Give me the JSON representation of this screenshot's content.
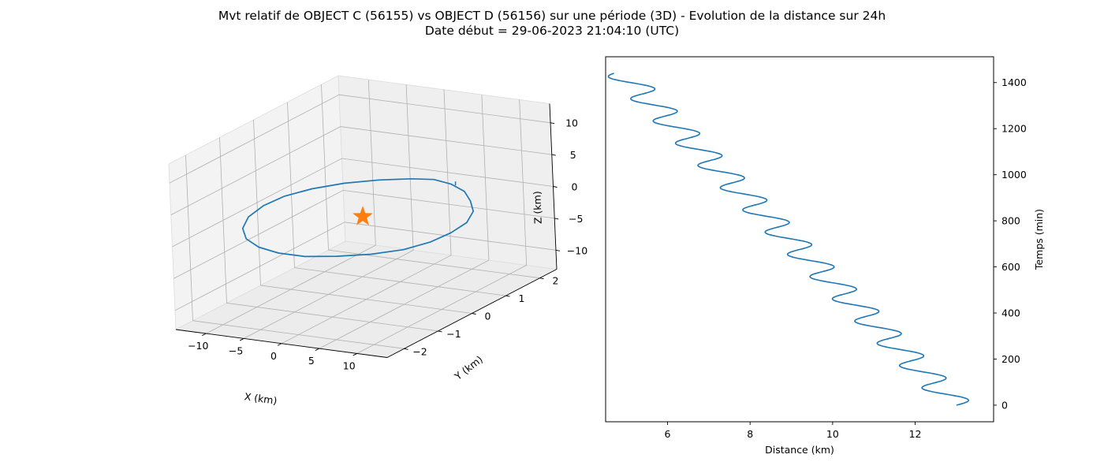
{
  "figure": {
    "title_line1": "Mvt relatif de OBJECT C (56155) vs OBJECT D (56156) sur une période (3D) - Evolution de la distance sur 24h",
    "title_line2": "Date début = 29-06-2023 21:04:10 (UTC)"
  },
  "colors": {
    "series": "#1f77b4",
    "marker": "#ff7f0e",
    "axis": "#000000",
    "pane": "#f2f2f2",
    "grid": "#b0b0b0"
  },
  "chart_data": [
    {
      "type": "line",
      "projection": "3d",
      "xlabel": "X (km)",
      "ylabel": "Y (km)",
      "zlabel": "Z (km)",
      "xlim": [
        -14,
        14
      ],
      "ylim": [
        -2.5,
        2.5
      ],
      "zlim": [
        -13,
        13
      ],
      "xticks": [
        -10,
        -5,
        0,
        5,
        10
      ],
      "yticks": [
        -2,
        -1,
        0,
        1,
        2
      ],
      "zticks": [
        -10,
        -5,
        0,
        5,
        10
      ],
      "xtick_labels": [
        "−10",
        "−5",
        "0",
        "5",
        "10"
      ],
      "ytick_labels": [
        "−2",
        "−1",
        "0",
        "1",
        "2"
      ],
      "ztick_labels": [
        "−10",
        "−5",
        "0",
        "5",
        "10"
      ],
      "grid": true,
      "series": [
        {
          "marker": "none",
          "points": [
            [
              0,
              2.1,
              0
            ],
            [
              2.7,
              2.0,
              0
            ],
            [
              5.6,
              1.75,
              0
            ],
            [
              8.2,
              1.35,
              0
            ],
            [
              10.6,
              0.9,
              0
            ],
            [
              12.2,
              0.35,
              0
            ],
            [
              12.6,
              -0.2,
              0
            ],
            [
              12.3,
              -0.75,
              0
            ],
            [
              11.0,
              -1.25,
              0
            ],
            [
              8.5,
              -1.65,
              0
            ],
            [
              5.3,
              -1.95,
              0
            ],
            [
              2.0,
              -2.15,
              0
            ],
            [
              -1.5,
              -2.15,
              0
            ],
            [
              -4.8,
              -2.0,
              0
            ],
            [
              -7.8,
              -1.7,
              0
            ],
            [
              -10.3,
              -1.25,
              0
            ],
            [
              -12.0,
              -0.7,
              0
            ],
            [
              -12.7,
              -0.1,
              0
            ],
            [
              -12.4,
              0.45,
              0
            ],
            [
              -11.0,
              0.95,
              0
            ],
            [
              -8.7,
              1.4,
              0
            ],
            [
              -5.7,
              1.75,
              0
            ],
            [
              -2.5,
              2.0,
              0
            ],
            [
              0,
              2.1,
              0
            ]
          ]
        },
        {
          "marker": "star",
          "points": [
            [
              0,
              0,
              0
            ]
          ]
        }
      ]
    },
    {
      "type": "line",
      "xlabel": "Distance (km)",
      "ylabel": "Temps (min)",
      "xlim": [
        4.5,
        13.9
      ],
      "ylim": [
        -72,
        1512
      ],
      "xticks": [
        6,
        8,
        10,
        12
      ],
      "yticks": [
        0,
        200,
        400,
        600,
        800,
        1000,
        1200,
        1400
      ],
      "yaxis_side": "right",
      "grid": false,
      "series": [
        {
          "x_start": 13.0,
          "x_end": 4.9,
          "x_amplitude": 0.42,
          "t_start": 0,
          "t_end": 1440,
          "period_min": 96.5,
          "sample_step_min": 2
        }
      ]
    }
  ]
}
